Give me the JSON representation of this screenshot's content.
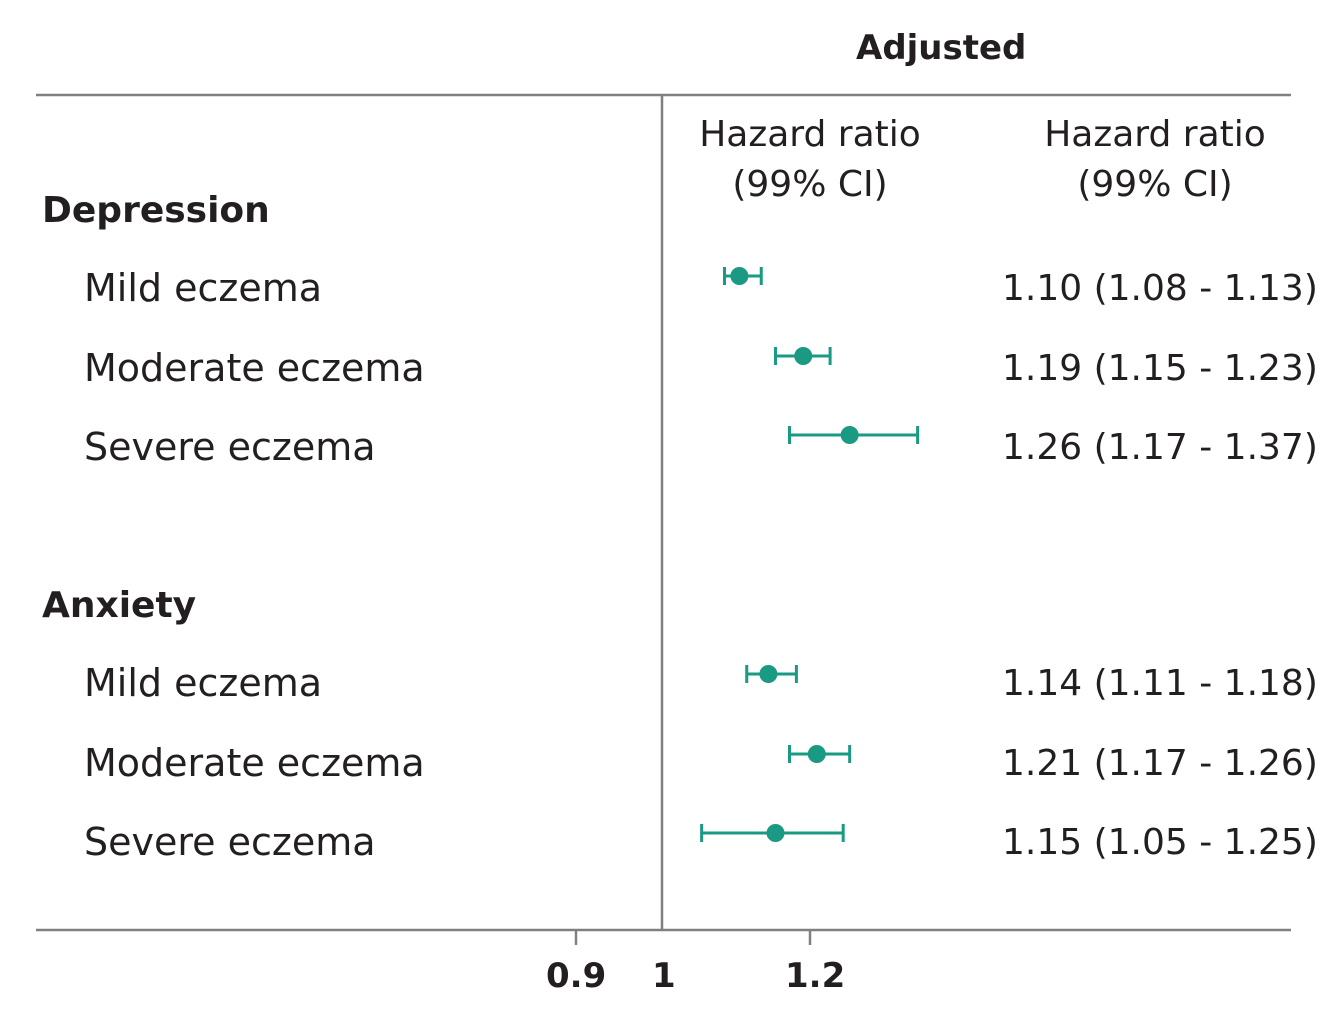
{
  "header": {
    "adjusted": "Adjusted"
  },
  "columns": {
    "plot": "Hazard ratio (99% CI)",
    "values": "Hazard ratio (99% CI)"
  },
  "colors": {
    "marker": "#1a9a83",
    "rule": "#808080",
    "text": "#231f20"
  },
  "chart_data": {
    "type": "forest",
    "x_scale": "log",
    "reference_line": 1,
    "x_ticks": [
      "0.9",
      "1",
      "1.2"
    ],
    "groups": [
      {
        "name": "Depression",
        "rows": [
          {
            "label": "Mild eczema",
            "hr": 1.1,
            "lo": 1.08,
            "hi": 1.13,
            "text": "1.10 (1.08 - 1.13)"
          },
          {
            "label": "Moderate eczema",
            "hr": 1.19,
            "lo": 1.15,
            "hi": 1.23,
            "text": "1.19 (1.15 - 1.23)"
          },
          {
            "label": "Severe eczema",
            "hr": 1.26,
            "lo": 1.17,
            "hi": 1.37,
            "text": "1.26 (1.17 - 1.37)"
          }
        ]
      },
      {
        "name": "Anxiety",
        "rows": [
          {
            "label": "Mild eczema",
            "hr": 1.14,
            "lo": 1.11,
            "hi": 1.18,
            "text": "1.14 (1.11 - 1.18)"
          },
          {
            "label": "Moderate eczema",
            "hr": 1.21,
            "lo": 1.17,
            "hi": 1.26,
            "text": "1.21 (1.17 - 1.26)"
          },
          {
            "label": "Severe eczema",
            "hr": 1.15,
            "lo": 1.05,
            "hi": 1.25,
            "text": "1.15 (1.05 - 1.25)"
          }
        ]
      }
    ]
  }
}
